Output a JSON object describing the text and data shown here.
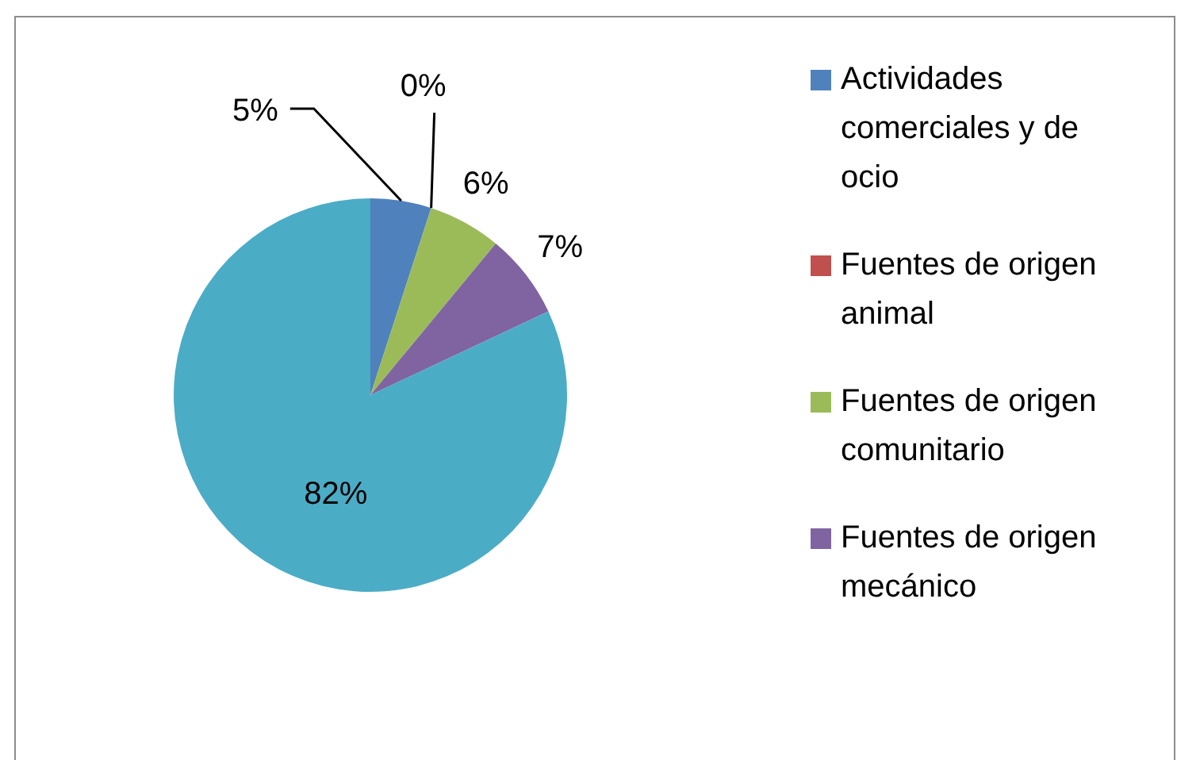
{
  "chart_data": {
    "type": "pie",
    "categories": [
      "Actividades comerciales y de ocio",
      "Fuentes de origen animal",
      "Fuentes de origen comunitario",
      "Fuentes de origen mecánico",
      null
    ],
    "values": [
      5,
      0,
      6,
      7,
      82
    ],
    "colors": [
      "#4f81bd",
      "#c0504d",
      "#9bbb59",
      "#8064a2",
      "#4bacc6"
    ],
    "value_labels": [
      "5%",
      "0%",
      "6%",
      "7%",
      "82%"
    ],
    "legend": "right"
  }
}
